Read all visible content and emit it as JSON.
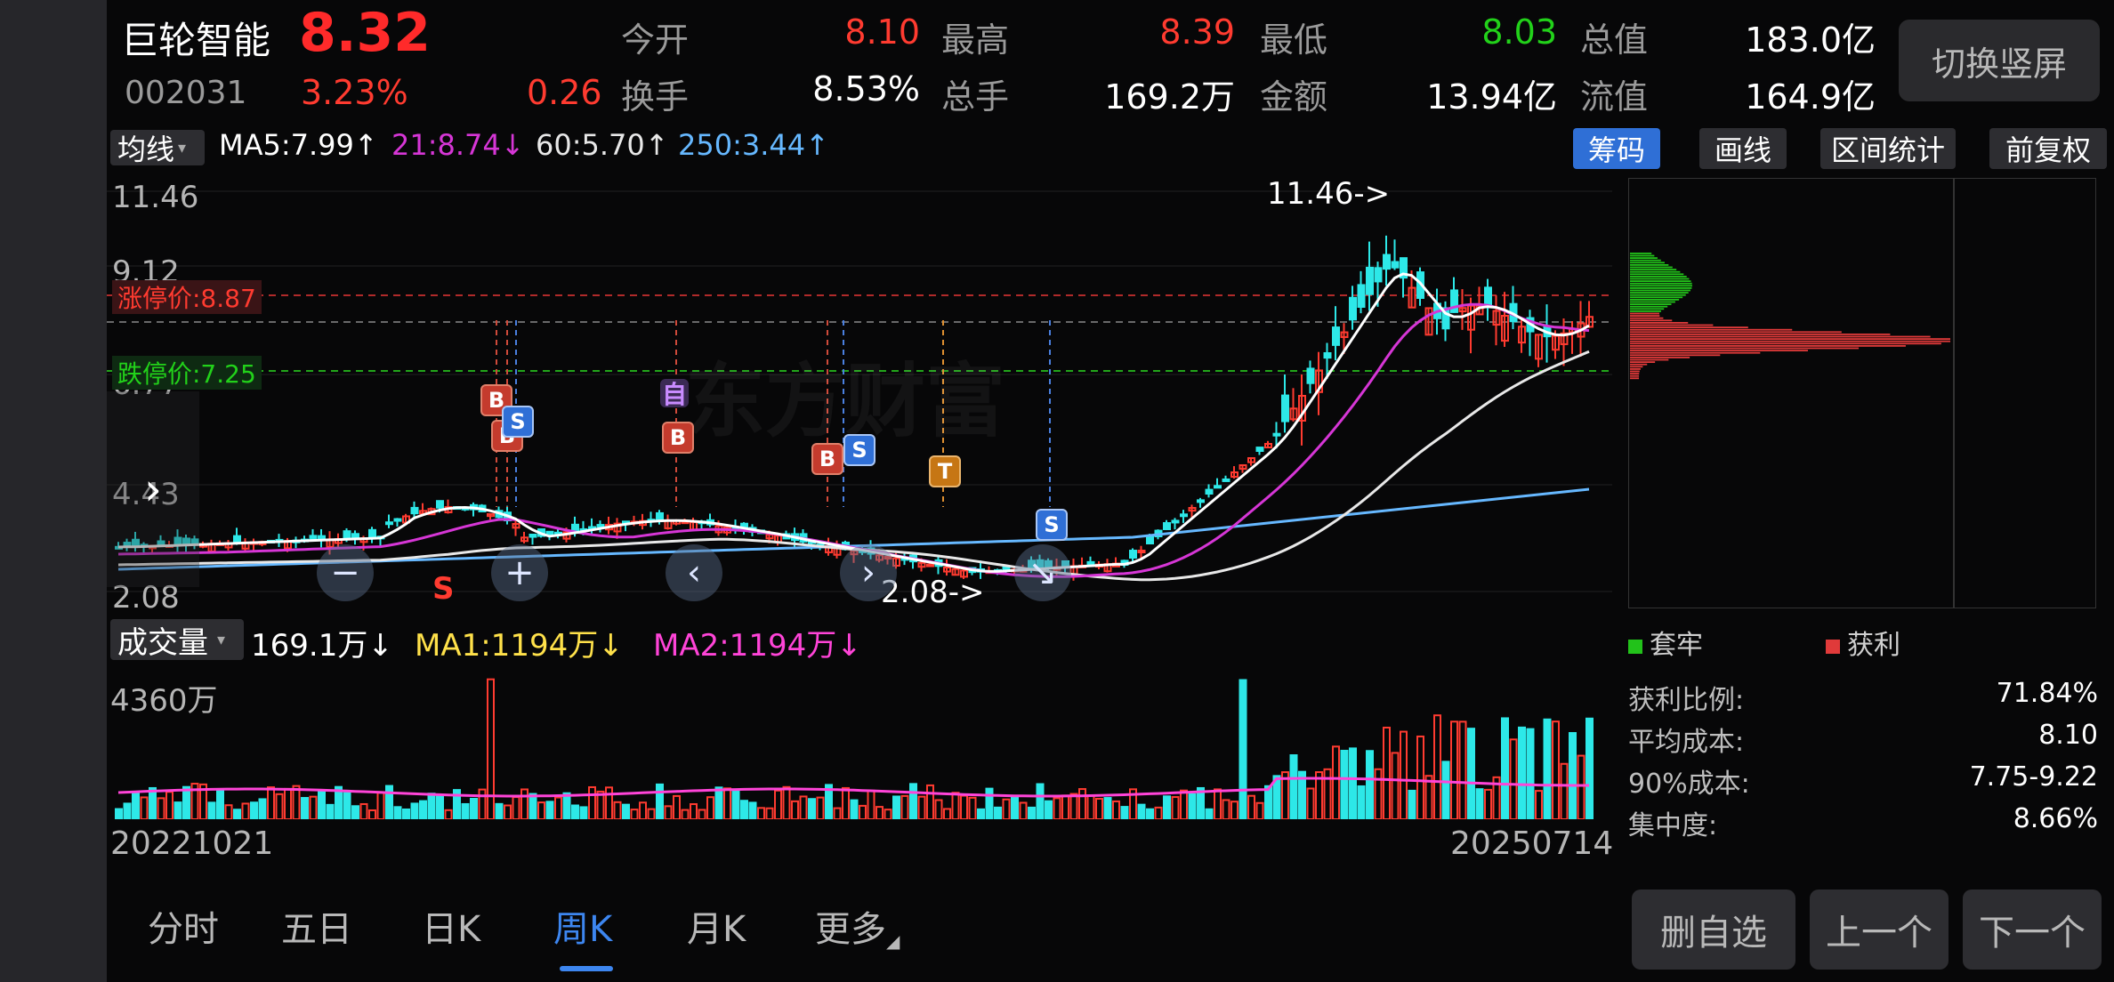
{
  "stock": {
    "name": "巨轮智能",
    "price": "8.32",
    "code": "002031",
    "change_pct": "3.23%",
    "change_amt": "0.26"
  },
  "quote": {
    "open_label": "今开",
    "open_value": "8.10",
    "high_label": "最高",
    "high_value": "8.39",
    "low_label": "最低",
    "low_value": "8.03",
    "total_mv_label": "总值",
    "total_mv_value": "183.0亿",
    "turnover_label": "换手",
    "turnover_value": "8.53%",
    "volume_label": "总手",
    "volume_value": "169.2万",
    "amount_label": "金额",
    "amount_value": "13.94亿",
    "float_mv_label": "流值",
    "float_mv_value": "164.9亿"
  },
  "toolbar": {
    "switch_vertical": "切换竖屏",
    "ma_select": "均线",
    "ma5": "MA5:7.99↑",
    "ma21": "21:8.74↓",
    "ma60": "60:5.70↑",
    "ma250": "250:3.44↑",
    "chips": "筹码",
    "draw": "画线",
    "range_stats": "区间统计",
    "adjust": "前复权"
  },
  "chart": {
    "y_labels": [
      "11.46",
      "9.12",
      "6.77",
      "4.43",
      "2.08"
    ],
    "limit_up": "涨停价:8.87",
    "limit_down": "跌停价:7.25",
    "watermark": "东方财富",
    "high_marker": "11.46->",
    "low_marker": "2.08->",
    "start_date": "20221021",
    "end_date": "20250714",
    "markers": [
      "B",
      "B",
      "S",
      "自",
      "B",
      "B",
      "S",
      "T",
      "S",
      "S"
    ]
  },
  "volume": {
    "select": "成交量",
    "current": "169.1万↓",
    "ma1": "MA1:1194万↓",
    "ma2": "MA2:1194万↓",
    "max_label": "4360万"
  },
  "chip_panel": {
    "legend_loss": "套牢",
    "legend_profit": "获利",
    "profit_ratio_label": "获利比例:",
    "profit_ratio_value": "71.84%",
    "avg_cost_label": "平均成本:",
    "avg_cost_value": "8.10",
    "cost90_label": "90%成本:",
    "cost90_value": "7.75-9.22",
    "concentration_label": "集中度:",
    "concentration_value": "8.66%"
  },
  "period_tabs": [
    "分时",
    "五日",
    "日K",
    "周K",
    "月K",
    "更多"
  ],
  "actions": {
    "remove_watch": "删自选",
    "prev": "上一个",
    "next": "下一个"
  },
  "colors": {
    "up": "#ff3b30",
    "down": "#22d11a",
    "ma5": "#ffffff",
    "ma21": "#d636d6",
    "ma60": "#e8e8e8",
    "ma250": "#66b8ff",
    "vol_ma1": "#ffe14a",
    "vol_ma2": "#ff44d8",
    "active_tab": "#3d86f0"
  }
}
